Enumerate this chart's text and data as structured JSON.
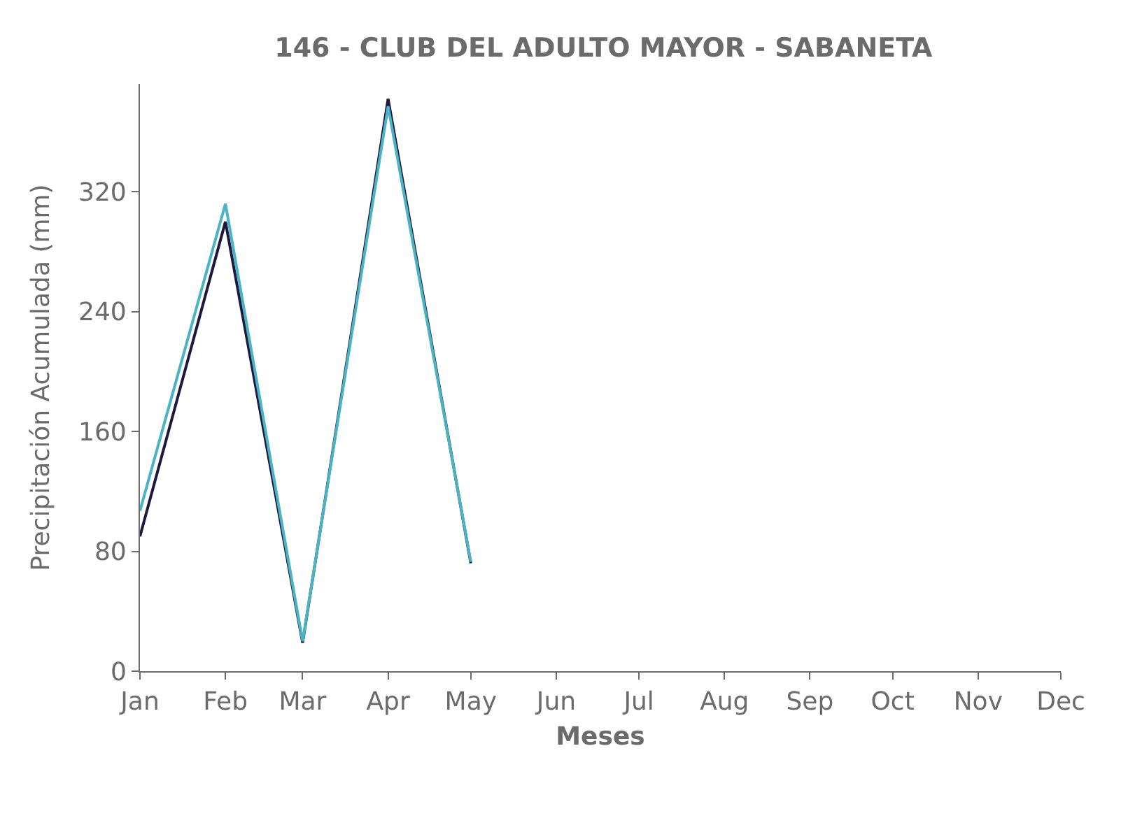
{
  "chart_data": {
    "type": "line",
    "title": "146 - CLUB DEL ADULTO MAYOR - SABANETA",
    "xlabel": "Meses",
    "ylabel": "Precipitación Acumulada (mm)",
    "x": [
      "--01-01",
      "--02-01",
      "--03-01",
      "--04-01",
      "--05-01"
    ],
    "series": [
      {
        "color": "#1f1a3d",
        "values": [
          90,
          300,
          19,
          382,
          72
        ]
      },
      {
        "color": "#4ab3c4",
        "values": [
          107,
          312,
          20,
          377,
          73
        ]
      }
    ],
    "xlim": [
      "--01-01",
      "--12-01"
    ],
    "xticks": [
      {
        "value": "--01-01",
        "label": "Jan"
      },
      {
        "value": "--02-01",
        "label": "Feb"
      },
      {
        "value": "--03-01",
        "label": "Mar"
      },
      {
        "value": "--04-01",
        "label": "Apr"
      },
      {
        "value": "--05-01",
        "label": "May"
      },
      {
        "value": "--06-01",
        "label": "Jun"
      },
      {
        "value": "--07-01",
        "label": "Jul"
      },
      {
        "value": "--08-01",
        "label": "Aug"
      },
      {
        "value": "--09-01",
        "label": "Sep"
      },
      {
        "value": "--10-01",
        "label": "Oct"
      },
      {
        "value": "--11-01",
        "label": "Nov"
      },
      {
        "value": "--12-01",
        "label": "Dec"
      }
    ],
    "ylim": [
      0,
      392
    ],
    "yticks": [
      0,
      80,
      160,
      240,
      320
    ],
    "marker": "none",
    "line_style": "solid"
  }
}
